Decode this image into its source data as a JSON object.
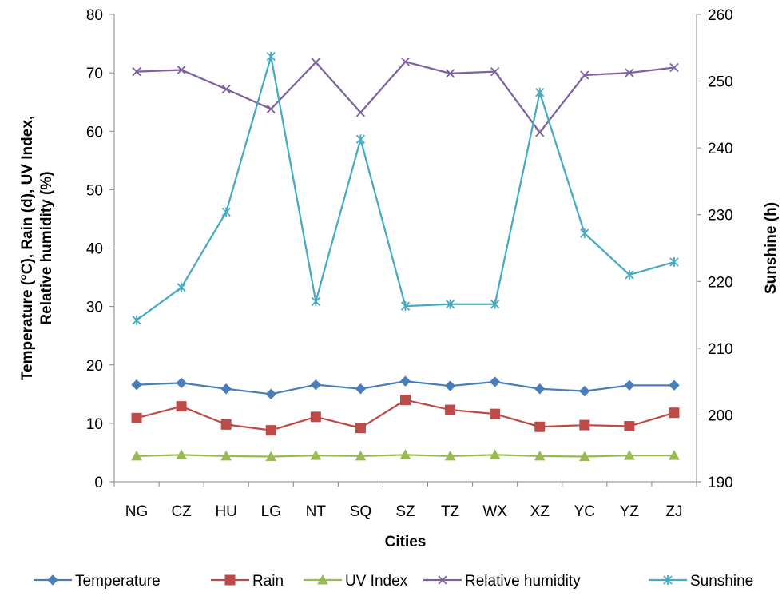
{
  "chart_data": {
    "type": "line",
    "categories": [
      "NG",
      "CZ",
      "HU",
      "LG",
      "NT",
      "SQ",
      "SZ",
      "TZ",
      "WX",
      "XZ",
      "YC",
      "YZ",
      "ZJ"
    ],
    "xlabel": "Cities",
    "ylabel_left": [
      "Temperature (°C), Rain (d), UV Index,",
      "Relative humidity (%)"
    ],
    "ylabel_right": "Sunshine (h)",
    "ylim_left": [
      0,
      80
    ],
    "yticks_left": [
      0,
      10,
      20,
      30,
      40,
      50,
      60,
      70,
      80
    ],
    "ylim_right": [
      190,
      260
    ],
    "yticks_right": [
      190,
      200,
      210,
      220,
      230,
      240,
      250,
      260
    ],
    "grid": false,
    "legend_position": "bottom",
    "series": [
      {
        "name": "Temperature",
        "axis": "left",
        "color": "#4a7ebb",
        "marker": "diamond",
        "values": [
          16.6,
          16.9,
          15.9,
          15.0,
          16.6,
          15.9,
          17.2,
          16.4,
          17.1,
          15.9,
          15.5,
          16.5,
          16.5
        ]
      },
      {
        "name": "Rain",
        "axis": "left",
        "color": "#be4b48",
        "marker": "square",
        "values": [
          10.9,
          12.9,
          9.8,
          8.8,
          11.1,
          9.2,
          14.0,
          12.3,
          11.6,
          9.4,
          9.7,
          9.5,
          11.8
        ]
      },
      {
        "name": "UV Index",
        "axis": "left",
        "color": "#98b954",
        "marker": "triangle",
        "values": [
          4.4,
          4.6,
          4.4,
          4.3,
          4.5,
          4.4,
          4.6,
          4.4,
          4.6,
          4.4,
          4.3,
          4.5,
          4.5
        ]
      },
      {
        "name": "Relative humidity",
        "axis": "left",
        "color": "#7d60a0",
        "marker": "x",
        "values": [
          70.2,
          70.5,
          67.2,
          63.8,
          71.8,
          63.2,
          71.9,
          69.9,
          70.2,
          59.8,
          69.6,
          70.0,
          70.9
        ]
      },
      {
        "name": "Sunshine",
        "axis": "right",
        "color": "#46aac5",
        "marker": "star",
        "values": [
          214.2,
          219.1,
          230.4,
          253.7,
          217.0,
          241.3,
          216.3,
          216.6,
          216.6,
          248.3,
          227.2,
          221.0,
          222.9
        ]
      }
    ]
  }
}
